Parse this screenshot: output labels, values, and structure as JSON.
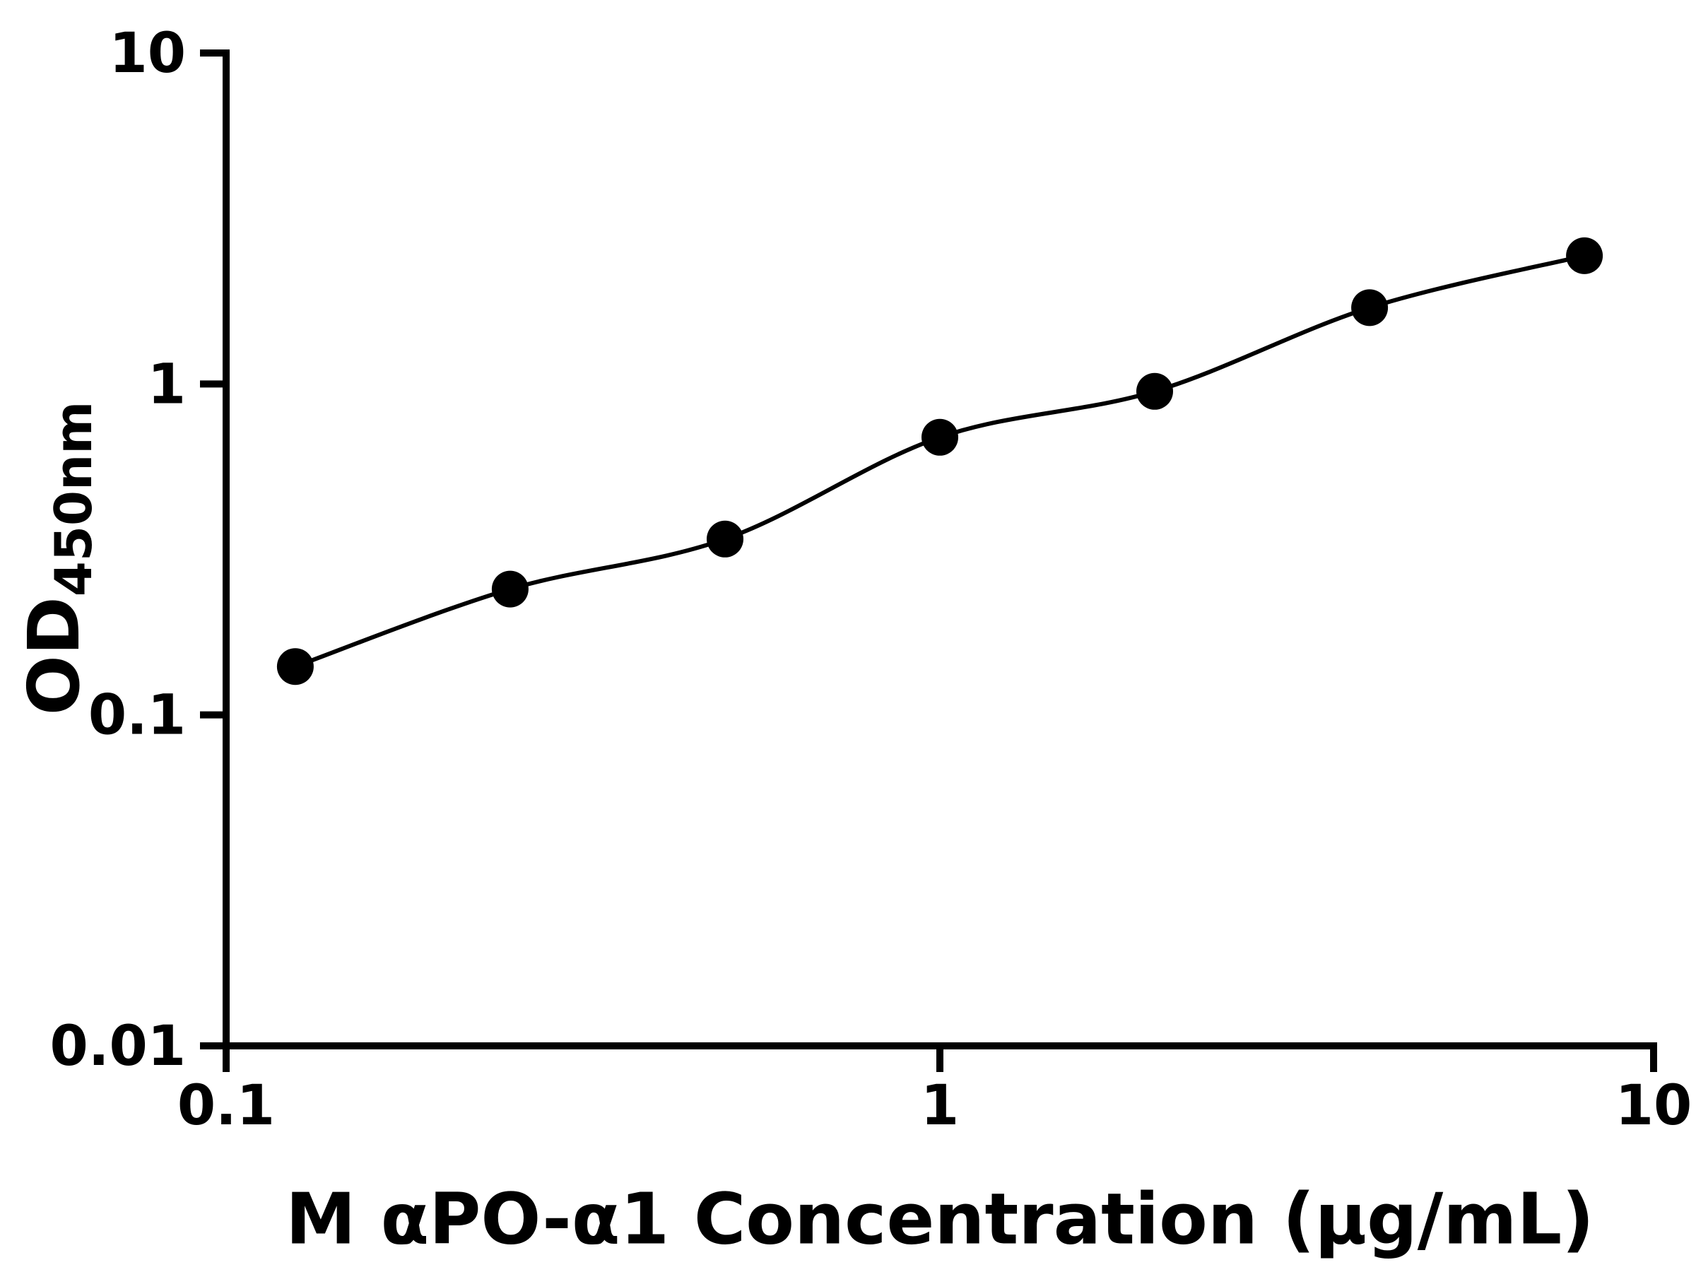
{
  "chart_data": {
    "type": "scatter",
    "title": "",
    "xlabel": "M αPO-α1 Concentration (μg/mL)",
    "ylabel_main": "OD",
    "ylabel_sub": "450nm",
    "x_scale": "log",
    "y_scale": "log",
    "xlim": [
      0.1,
      10
    ],
    "ylim": [
      0.01,
      10
    ],
    "x_ticks": [
      0.1,
      1,
      10
    ],
    "x_tick_labels": [
      "0.1",
      "1",
      "10"
    ],
    "y_ticks": [
      0.01,
      0.1,
      1,
      10
    ],
    "y_tick_labels": [
      "0.01",
      "0.1",
      "1",
      "10"
    ],
    "grid": false,
    "legend": false,
    "curve_style": "smooth-fit-through-points",
    "points": [
      {
        "x": 0.125,
        "y": 0.14
      },
      {
        "x": 0.25,
        "y": 0.24
      },
      {
        "x": 0.5,
        "y": 0.34
      },
      {
        "x": 1,
        "y": 0.69
      },
      {
        "x": 2,
        "y": 0.95
      },
      {
        "x": 4,
        "y": 1.7
      },
      {
        "x": 8,
        "y": 2.44
      }
    ],
    "marker_color": "#000000",
    "line_color": "#000000",
    "axis_color": "#000000",
    "background": "#ffffff"
  }
}
